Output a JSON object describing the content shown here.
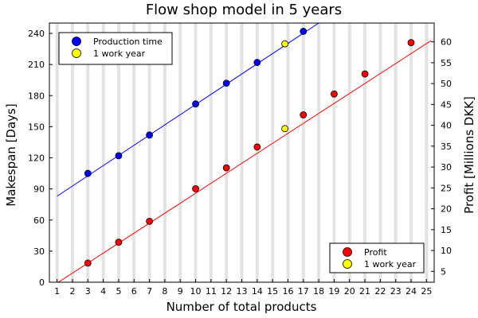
{
  "chart_data": {
    "type": "scatter",
    "title": "Flow shop model in 5 years",
    "xlabel": "Number of total products",
    "ylabel_left": "Makespan [Days]",
    "ylabel_right": "Profit [Millions DKK]",
    "xlim": [
      0.5,
      25.5
    ],
    "ylim_left": [
      0,
      250
    ],
    "ylim_right": [
      2.4,
      64.5
    ],
    "x_ticks": [
      1,
      2,
      3,
      4,
      5,
      6,
      7,
      8,
      9,
      10,
      11,
      12,
      13,
      14,
      15,
      16,
      17,
      18,
      19,
      20,
      21,
      22,
      23,
      24,
      25
    ],
    "y_ticks_left": [
      0,
      30,
      60,
      90,
      120,
      150,
      180,
      210,
      240
    ],
    "y_ticks_right": [
      5,
      10,
      15,
      20,
      25,
      30,
      35,
      40,
      45,
      50,
      55,
      60
    ],
    "grid": "vertical",
    "colors": {
      "production": "#0000ff",
      "profit": "#ff0000",
      "work_year": "#ffff00",
      "grid": "#e3e3e3"
    },
    "series": [
      {
        "name": "Production time",
        "axis": "left",
        "color": "#0000ff",
        "points": [
          [
            3,
            105
          ],
          [
            5,
            122
          ],
          [
            7,
            142
          ],
          [
            10,
            172
          ],
          [
            12,
            192
          ],
          [
            14,
            212
          ],
          [
            17,
            242
          ]
        ],
        "fit_line": [
          [
            1,
            83
          ],
          [
            18,
            250
          ]
        ]
      },
      {
        "name": "1 work year",
        "axis": "left",
        "color": "#ffff00",
        "points": [
          [
            15.8,
            230
          ]
        ]
      },
      {
        "name": "Profit",
        "axis": "right",
        "color": "#ff0000",
        "points": [
          [
            3,
            7
          ],
          [
            5,
            12
          ],
          [
            7,
            17
          ],
          [
            10,
            24.8
          ],
          [
            12,
            29.8
          ],
          [
            14,
            34.8
          ],
          [
            17,
            42.5
          ],
          [
            19,
            47.5
          ],
          [
            21,
            52.3
          ],
          [
            24,
            59.8
          ]
        ],
        "fit_line": [
          [
            1,
            2.2
          ],
          [
            25.3,
            60.3
          ]
        ]
      },
      {
        "name": "1 work year",
        "axis": "right",
        "color": "#ffff00",
        "points": [
          [
            15.8,
            39.2
          ]
        ]
      }
    ],
    "legends": [
      {
        "placement": "top-left",
        "entries": [
          {
            "label": "Production time",
            "color": "#0000ff"
          },
          {
            "label": "1 work year",
            "color": "#ffff00"
          }
        ]
      },
      {
        "placement": "bottom-right",
        "entries": [
          {
            "label": "Profit",
            "color": "#ff0000"
          },
          {
            "label": "1 work year",
            "color": "#ffff00"
          }
        ]
      }
    ]
  }
}
